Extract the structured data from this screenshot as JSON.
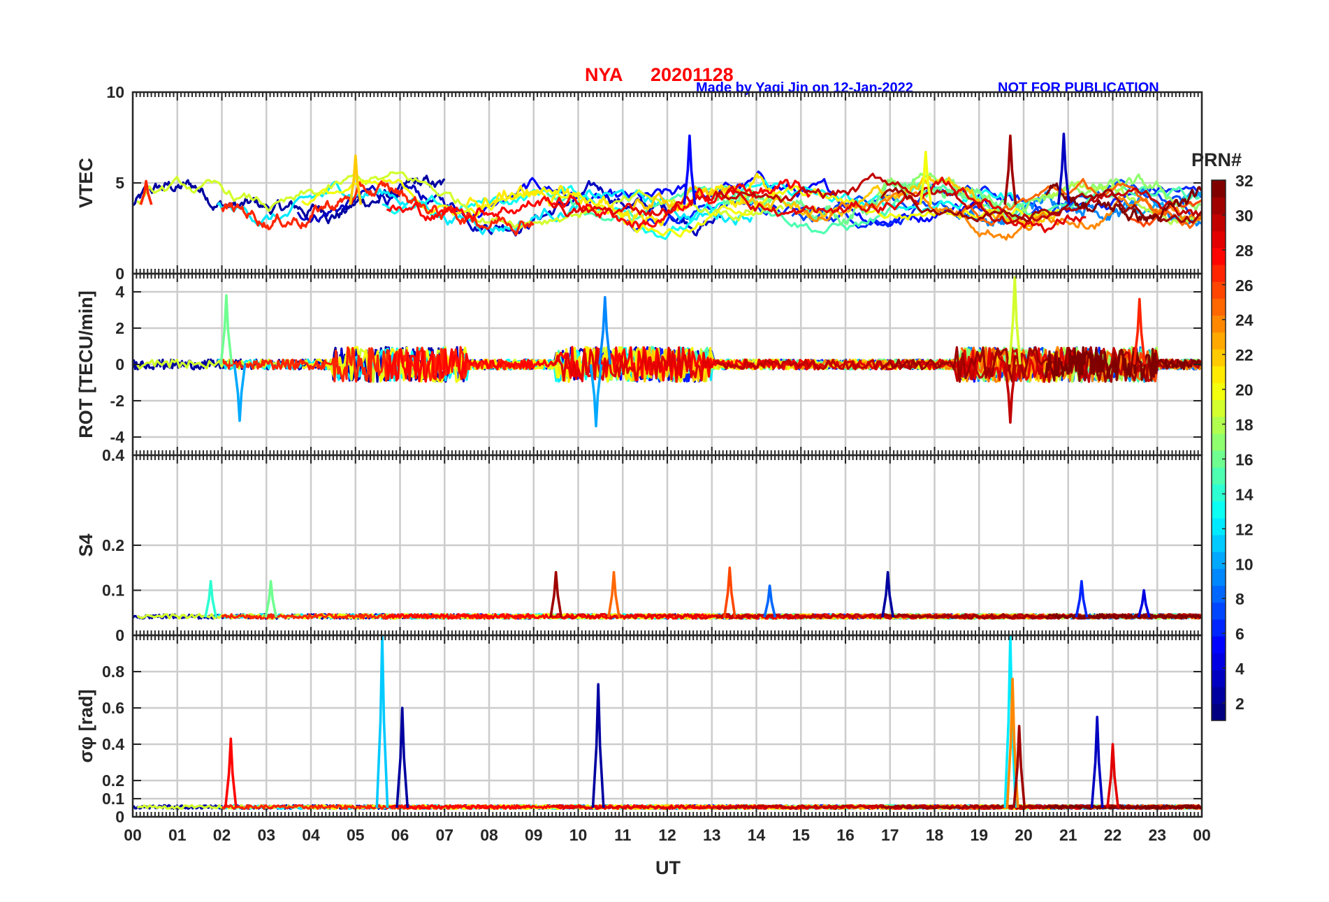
{
  "chart_data": {
    "type": "line",
    "title_station": "NYA",
    "title_date": "20201128",
    "credit": "Made by Yaqi Jin on 12-Jan-2022",
    "notice": "NOT FOR PUBLICATION",
    "xlabel": "UT",
    "x_tick_labels": [
      "00",
      "01",
      "02",
      "03",
      "04",
      "05",
      "06",
      "07",
      "08",
      "09",
      "10",
      "11",
      "12",
      "13",
      "14",
      "15",
      "16",
      "17",
      "18",
      "19",
      "20",
      "21",
      "22",
      "23",
      "00"
    ],
    "xlim_hours": [
      0,
      24
    ],
    "grid": true,
    "colorbar": {
      "label": "PRN#",
      "range": [
        1,
        32
      ],
      "tick_labels": [
        "2",
        "4",
        "6",
        "8",
        "10",
        "12",
        "14",
        "16",
        "18",
        "20",
        "22",
        "24",
        "26",
        "28",
        "30",
        "32"
      ],
      "colormap": "jet"
    },
    "panels": [
      {
        "ylabel": "VTEC",
        "ylim": [
          0,
          10
        ],
        "y_tick_labels": [
          "0",
          "5",
          "10"
        ],
        "y_ticks": [
          0,
          5,
          10
        ],
        "baseline": 3.8,
        "noise": 0.9,
        "trend": "smooth",
        "features": [
          {
            "prn": 27,
            "t": 0.3,
            "value": 5.1
          },
          {
            "prn": 22,
            "t": 5.0,
            "value": 6.5
          },
          {
            "prn": 5,
            "t": 12.5,
            "value": 7.6
          },
          {
            "prn": 20,
            "t": 17.8,
            "value": 6.7
          },
          {
            "prn": 31,
            "t": 19.7,
            "value": 7.6
          },
          {
            "prn": 3,
            "t": 20.9,
            "value": 7.7
          }
        ]
      },
      {
        "ylabel": "ROT [TECU/min]",
        "ylim": [
          -5,
          5
        ],
        "y_tick_labels": [
          "-4",
          "-2",
          "0",
          "2",
          "4"
        ],
        "y_ticks": [
          -4,
          -2,
          0,
          2,
          4
        ],
        "baseline": 0,
        "noise": 0.8,
        "trend": "spiky",
        "features": [
          {
            "prn": 16,
            "t": 2.1,
            "value": 3.8
          },
          {
            "prn": 10,
            "t": 2.4,
            "value": -3.1
          },
          {
            "prn": 10,
            "t": 10.4,
            "value": -3.4
          },
          {
            "prn": 9,
            "t": 10.6,
            "value": 3.7
          },
          {
            "prn": 19,
            "t": 19.8,
            "value": 4.8
          },
          {
            "prn": 30,
            "t": 19.7,
            "value": -3.2
          },
          {
            "prn": 27,
            "t": 22.6,
            "value": 3.6
          }
        ]
      },
      {
        "ylabel": "S4",
        "ylim": [
          0,
          0.4
        ],
        "y_tick_labels": [
          "0",
          "0.1",
          "0.2",
          "0.4"
        ],
        "y_ticks": [
          0,
          0.1,
          0.2,
          0.4
        ],
        "baseline": 0.04,
        "noise": 0.01,
        "trend": "flat",
        "features": [
          {
            "prn": 14,
            "t": 1.75,
            "value": 0.12
          },
          {
            "prn": 16,
            "t": 3.1,
            "value": 0.12
          },
          {
            "prn": 31,
            "t": 9.5,
            "value": 0.14
          },
          {
            "prn": 25,
            "t": 10.8,
            "value": 0.14
          },
          {
            "prn": 26,
            "t": 13.4,
            "value": 0.15
          },
          {
            "prn": 8,
            "t": 14.3,
            "value": 0.11
          },
          {
            "prn": 2,
            "t": 16.95,
            "value": 0.14
          },
          {
            "prn": 6,
            "t": 21.3,
            "value": 0.12
          },
          {
            "prn": 4,
            "t": 22.7,
            "value": 0.1
          }
        ]
      },
      {
        "ylabel": "σφ [rad]",
        "ylim": [
          0,
          1
        ],
        "y_tick_labels": [
          "0",
          "0.1",
          "0.2",
          "0.4",
          "0.6",
          "0.8"
        ],
        "y_ticks": [
          0,
          0.1,
          0.2,
          0.4,
          0.6,
          0.8
        ],
        "baseline": 0.05,
        "noise": 0.02,
        "trend": "flat",
        "features": [
          {
            "prn": 28,
            "t": 2.2,
            "value": 0.43
          },
          {
            "prn": 11,
            "t": 5.6,
            "value": 1.0
          },
          {
            "prn": 2,
            "t": 6.05,
            "value": 0.6
          },
          {
            "prn": 2,
            "t": 10.45,
            "value": 0.73
          },
          {
            "prn": 12,
            "t": 19.7,
            "value": 1.0
          },
          {
            "prn": 24,
            "t": 19.75,
            "value": 0.76
          },
          {
            "prn": 31,
            "t": 19.9,
            "value": 0.5
          },
          {
            "prn": 3,
            "t": 21.65,
            "value": 0.55
          },
          {
            "prn": 29,
            "t": 22.0,
            "value": 0.4
          }
        ]
      }
    ]
  }
}
